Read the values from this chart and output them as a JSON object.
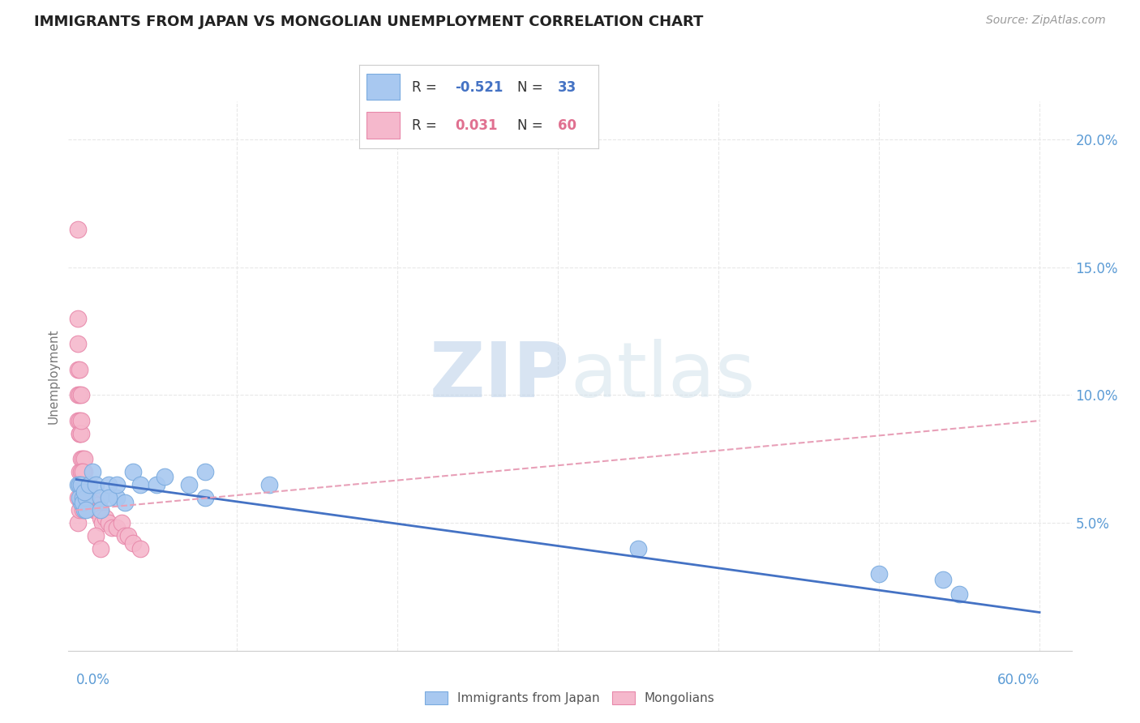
{
  "title": "IMMIGRANTS FROM JAPAN VS MONGOLIAN UNEMPLOYMENT CORRELATION CHART",
  "source": "Source: ZipAtlas.com",
  "ylabel": "Unemployment",
  "watermark_bold": "ZIP",
  "watermark_light": "atlas",
  "series1_label": "Immigrants from Japan",
  "series1_color": "#a8c8f0",
  "series1_edge": "#7aabdf",
  "series2_label": "Mongolians",
  "series2_color": "#f5b8cc",
  "series2_edge": "#e888aa",
  "japan_x": [
    0.001,
    0.002,
    0.003,
    0.002,
    0.004,
    0.003,
    0.005,
    0.004,
    0.006,
    0.005,
    0.008,
    0.006,
    0.01,
    0.012,
    0.015,
    0.02,
    0.025,
    0.03,
    0.035,
    0.04,
    0.05,
    0.055,
    0.07,
    0.08,
    0.015,
    0.02,
    0.025,
    0.08,
    0.12,
    0.35,
    0.5,
    0.54,
    0.55
  ],
  "japan_y": [
    0.065,
    0.065,
    0.058,
    0.06,
    0.06,
    0.065,
    0.055,
    0.058,
    0.06,
    0.062,
    0.065,
    0.055,
    0.07,
    0.065,
    0.06,
    0.065,
    0.06,
    0.058,
    0.07,
    0.065,
    0.065,
    0.068,
    0.065,
    0.06,
    0.055,
    0.06,
    0.065,
    0.07,
    0.065,
    0.04,
    0.03,
    0.028,
    0.022
  ],
  "mongol_x": [
    0.001,
    0.001,
    0.001,
    0.001,
    0.001,
    0.001,
    0.002,
    0.002,
    0.002,
    0.002,
    0.002,
    0.002,
    0.003,
    0.003,
    0.003,
    0.003,
    0.004,
    0.004,
    0.004,
    0.004,
    0.005,
    0.005,
    0.005,
    0.005,
    0.006,
    0.006,
    0.007,
    0.007,
    0.008,
    0.008,
    0.009,
    0.009,
    0.01,
    0.01,
    0.011,
    0.012,
    0.013,
    0.014,
    0.015,
    0.015,
    0.016,
    0.018,
    0.02,
    0.022,
    0.025,
    0.028,
    0.03,
    0.032,
    0.035,
    0.04,
    0.001,
    0.001,
    0.002,
    0.002,
    0.003,
    0.003,
    0.004,
    0.004,
    0.012,
    0.015
  ],
  "mongol_y": [
    0.165,
    0.13,
    0.12,
    0.11,
    0.1,
    0.09,
    0.11,
    0.09,
    0.1,
    0.085,
    0.085,
    0.07,
    0.085,
    0.09,
    0.1,
    0.075,
    0.07,
    0.075,
    0.065,
    0.07,
    0.065,
    0.07,
    0.075,
    0.06,
    0.065,
    0.06,
    0.065,
    0.063,
    0.06,
    0.062,
    0.06,
    0.058,
    0.06,
    0.058,
    0.055,
    0.055,
    0.057,
    0.055,
    0.055,
    0.052,
    0.05,
    0.052,
    0.05,
    0.048,
    0.048,
    0.05,
    0.045,
    0.045,
    0.042,
    0.04,
    0.05,
    0.06,
    0.055,
    0.065,
    0.06,
    0.07,
    0.055,
    0.07,
    0.045,
    0.04
  ],
  "xlim": [
    -0.005,
    0.62
  ],
  "ylim": [
    0.0,
    0.215
  ],
  "yticks": [
    0.05,
    0.1,
    0.15,
    0.2
  ],
  "ytick_labels": [
    "5.0%",
    "10.0%",
    "15.0%",
    "20.0%"
  ],
  "xticks": [
    0.0,
    0.1,
    0.2,
    0.3,
    0.4,
    0.5,
    0.6
  ],
  "background_color": "#ffffff",
  "grid_color": "#e8e8e8",
  "title_color": "#222222",
  "axis_color": "#5b9bd5",
  "trend_japan_color": "#4472c4",
  "trend_mongol_color": "#e8a0b8"
}
